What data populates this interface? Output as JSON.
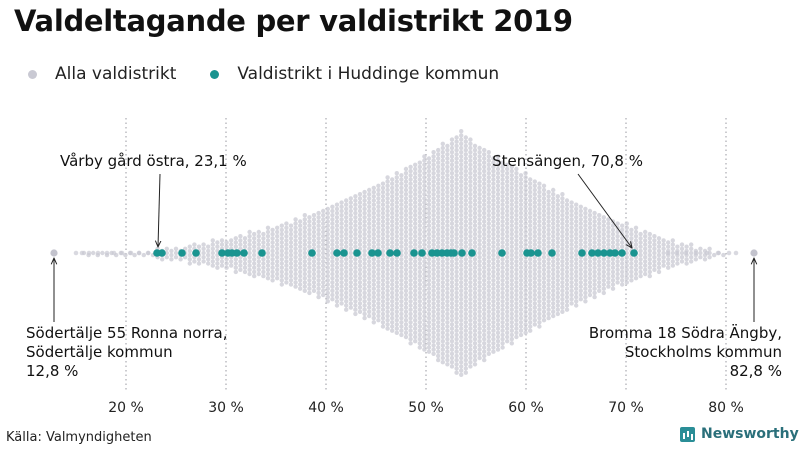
{
  "chart_data": {
    "type": "scatter",
    "subtype": "beeswarm",
    "title": "Valdeltagande per valdistrikt 2019",
    "xlabel": "",
    "ylabel": "",
    "xlim": [
      12,
      84
    ],
    "x_ticks": [
      {
        "value": 20,
        "label": "20 %"
      },
      {
        "value": 30,
        "label": "30 %"
      },
      {
        "value": 40,
        "label": "40 %"
      },
      {
        "value": 50,
        "label": "50 %"
      },
      {
        "value": 60,
        "label": "60 %"
      },
      {
        "value": 70,
        "label": "70 %"
      },
      {
        "value": 80,
        "label": "80 %"
      }
    ],
    "grid": "vertical dotted",
    "legend_position": "top-left",
    "series": [
      {
        "name": "Alla valdistrikt",
        "color": "#c9c9d3",
        "description": "approx. distribution of all districts (beeswarm)",
        "distribution_peak": 53.5,
        "min": 12.8,
        "max": 82.8
      },
      {
        "name": "Valdistrikt i Huddinge kommun",
        "color": "#1a9490",
        "values": [
          23.1,
          23.6,
          25.6,
          27.0,
          29.6,
          30.2,
          30.6,
          31.1,
          31.8,
          33.6,
          38.6,
          41.1,
          41.8,
          43.1,
          44.6,
          45.2,
          46.4,
          47.1,
          48.8,
          49.6,
          50.6,
          51.1,
          51.6,
          52.1,
          52.5,
          52.8,
          53.6,
          54.6,
          57.6,
          60.1,
          60.5,
          61.2,
          62.6,
          65.6,
          66.6,
          67.2,
          67.8,
          68.4,
          68.9,
          69.6,
          70.8
        ]
      }
    ],
    "annotations": [
      {
        "text_lines": [
          "Vårby gård östra, 23,1 %"
        ],
        "value": 23.1
      },
      {
        "text_lines": [
          "Stensängen, 70,8 %"
        ],
        "value": 70.8
      },
      {
        "text_lines": [
          "Södertälje 55 Ronna norra,",
          "Södertälje kommun",
          "12,8 %"
        ],
        "value": 12.8
      },
      {
        "text_lines": [
          "Bromma 18 Södra Ängby,",
          "Stockholms kommun",
          "82,8 %"
        ],
        "value": 82.8
      }
    ]
  },
  "legend": {
    "items": [
      {
        "label": "Alla valdistrikt",
        "color": "#c9c9d3"
      },
      {
        "label": "Valdistrikt i Huddinge kommun",
        "color": "#1a9490"
      }
    ]
  },
  "footer": {
    "source": "Källa: Valmyndigheten",
    "brand": "Newsworthy"
  }
}
